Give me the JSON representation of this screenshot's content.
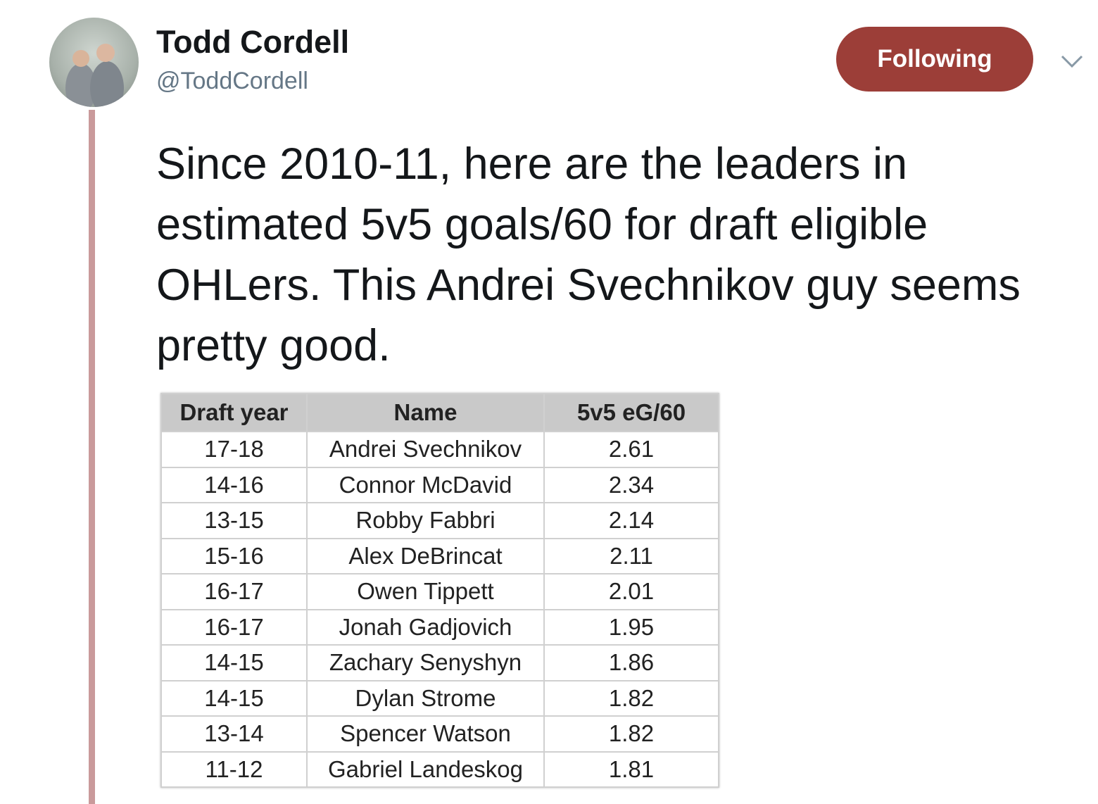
{
  "header": {
    "name": "Todd Cordell",
    "handle": "@ToddCordell",
    "button": "Following"
  },
  "tweet": {
    "text": "Since 2010-11, here are the leaders in estimated 5v5 goals/60 for draft eligible OHLers. This Andrei Svechnikov guy seems pretty good."
  },
  "table": {
    "columns": [
      "Draft year",
      "Name",
      "5v5 eG/60"
    ],
    "rows": [
      [
        "17-18",
        "Andrei Svechnikov",
        2.61
      ],
      [
        "14-16",
        "Connor McDavid",
        2.34
      ],
      [
        "13-15",
        "Robby Fabbri",
        2.14
      ],
      [
        "15-16",
        "Alex DeBrincat",
        2.11
      ],
      [
        "16-17",
        "Owen Tippett",
        2.01
      ],
      [
        "16-17",
        "Jonah Gadjovich",
        1.95
      ],
      [
        "14-15",
        "Zachary Senyshyn",
        1.86
      ],
      [
        "14-15",
        "Dylan Strome",
        1.82
      ],
      [
        "13-14",
        "Spencer Watson",
        1.82
      ],
      [
        "11-12",
        "Gabriel Landeskog",
        1.81
      ]
    ]
  }
}
